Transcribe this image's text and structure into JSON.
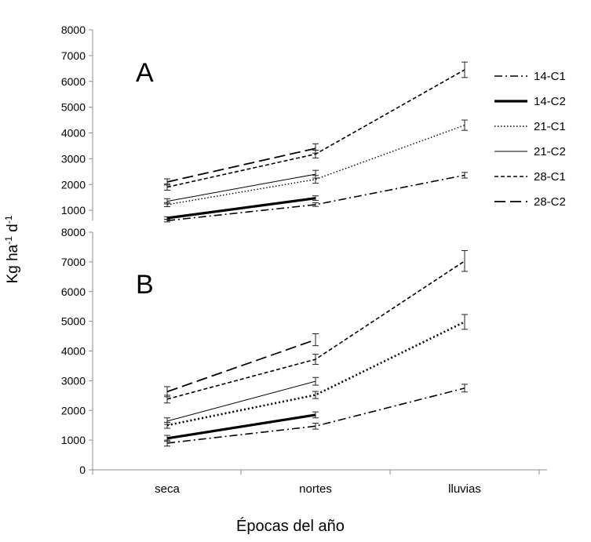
{
  "figure": {
    "x_title": "Épocas del año",
    "y_title_main": "Kg ha",
    "y_title_sup1": "-1",
    "y_title_mid": " d",
    "y_title_sup2": "-1"
  },
  "chart_data": [
    {
      "type": "line",
      "panel_label": "A",
      "categories": [
        "seca",
        "nortes",
        "lluvias"
      ],
      "ylim": [
        0,
        8000
      ],
      "y_ticks": [
        "1000",
        "2000",
        "3000",
        "4000",
        "5000",
        "6000",
        "7000",
        "8000"
      ],
      "grid": false,
      "legend_position": "right",
      "series": [
        {
          "name": "14-C1",
          "style": "dash-dot",
          "values": [
            600,
            1220,
            2360
          ],
          "errors": [
            50,
            70,
            110
          ]
        },
        {
          "name": "14-C2",
          "style": "thick-solid",
          "values": [
            700,
            1470,
            null
          ],
          "errors": [
            50,
            90,
            null
          ]
        },
        {
          "name": "21-C1",
          "style": "dotted",
          "values": [
            1220,
            2200,
            4300
          ],
          "errors": [
            80,
            150,
            200
          ]
        },
        {
          "name": "21-C2",
          "style": "thin-solid",
          "values": [
            1350,
            2400,
            null
          ],
          "errors": [
            100,
            150,
            null
          ]
        },
        {
          "name": "28-C1",
          "style": "short-dash",
          "values": [
            1900,
            3180,
            6450
          ],
          "errors": [
            120,
            150,
            300
          ]
        },
        {
          "name": "28-C2",
          "style": "long-dash",
          "values": [
            2100,
            3400,
            null
          ],
          "errors": [
            120,
            180,
            null
          ]
        }
      ]
    },
    {
      "type": "line",
      "panel_label": "B",
      "categories": [
        "seca",
        "nortes",
        "lluvias"
      ],
      "ylim": [
        0,
        8000
      ],
      "y_ticks": [
        "0",
        "1000",
        "2000",
        "3000",
        "4000",
        "5000",
        "6000",
        "7000",
        "8000"
      ],
      "grid": false,
      "series": [
        {
          "name": "14-C1",
          "style": "dash-dot",
          "values": [
            900,
            1470,
            2750
          ],
          "errors": [
            100,
            100,
            130
          ]
        },
        {
          "name": "14-C2",
          "style": "thick-solid",
          "values": [
            1060,
            1850,
            null
          ],
          "errors": [
            100,
            100,
            null
          ]
        },
        {
          "name": "21-C1",
          "style": "dotted-bold",
          "values": [
            1500,
            2520,
            4980
          ],
          "errors": [
            100,
            120,
            250
          ]
        },
        {
          "name": "21-C2",
          "style": "thin-solid",
          "values": [
            1640,
            2980,
            null
          ],
          "errors": [
            110,
            130,
            null
          ]
        },
        {
          "name": "28-C1",
          "style": "short-dash",
          "values": [
            2380,
            3720,
            7030
          ],
          "errors": [
            130,
            170,
            350
          ]
        },
        {
          "name": "28-C2",
          "style": "long-dash",
          "values": [
            2630,
            4380,
            null
          ],
          "errors": [
            170,
            200,
            null
          ]
        }
      ]
    }
  ]
}
